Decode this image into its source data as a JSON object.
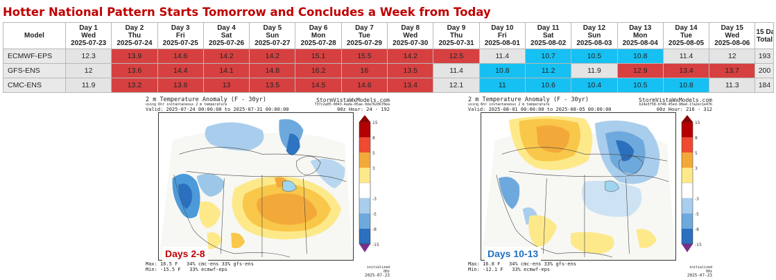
{
  "title": "Hotter National Pattern Starts Tomorrow and Concludes a Week from Today",
  "colors": {
    "hot": "#d64040",
    "cool": "#16c0f2",
    "neutral": "#e4e4e4",
    "title": "#c00000",
    "label1": "#c00000",
    "label2": "#1f6fbf"
  },
  "table": {
    "model_header": "Model",
    "total_header": [
      "15 Day",
      "Total"
    ],
    "days": [
      {
        "label": "Day 1",
        "dow": "Wed",
        "date": "2025-07-23"
      },
      {
        "label": "Day 2",
        "dow": "Thu",
        "date": "2025-07-24"
      },
      {
        "label": "Day 3",
        "dow": "Fri",
        "date": "2025-07-25"
      },
      {
        "label": "Day 4",
        "dow": "Sat",
        "date": "2025-07-26"
      },
      {
        "label": "Day 5",
        "dow": "Sun",
        "date": "2025-07-27"
      },
      {
        "label": "Day 6",
        "dow": "Mon",
        "date": "2025-07-28"
      },
      {
        "label": "Day 7",
        "dow": "Tue",
        "date": "2025-07-29"
      },
      {
        "label": "Day 8",
        "dow": "Wed",
        "date": "2025-07-30"
      },
      {
        "label": "Day 9",
        "dow": "Thu",
        "date": "2025-07-31"
      },
      {
        "label": "Day 10",
        "dow": "Fri",
        "date": "2025-08-01"
      },
      {
        "label": "Day 11",
        "dow": "Sat",
        "date": "2025-08-02"
      },
      {
        "label": "Day 12",
        "dow": "Sun",
        "date": "2025-08-03"
      },
      {
        "label": "Day 13",
        "dow": "Mon",
        "date": "2025-08-04"
      },
      {
        "label": "Day 14",
        "dow": "Tue",
        "date": "2025-08-05"
      },
      {
        "label": "Day 15",
        "dow": "Wed",
        "date": "2025-08-06"
      }
    ],
    "rows": [
      {
        "model": "ECMWF-EPS",
        "values": [
          "12.3",
          "13.9",
          "14.6",
          "14.2",
          "14.2",
          "15.1",
          "15.5",
          "14.2",
          "12.5",
          "11.4",
          "10.7",
          "10.5",
          "10.8",
          "11.4",
          "12"
        ],
        "status": [
          "neutral",
          "hot",
          "hot",
          "hot",
          "hot",
          "hot",
          "hot",
          "hot",
          "hot",
          "neutral",
          "cool",
          "cool",
          "cool",
          "neutral",
          "neutral"
        ],
        "total": "193"
      },
      {
        "model": "GFS-ENS",
        "values": [
          "12",
          "13.6",
          "14.4",
          "14.1",
          "14.8",
          "16.2",
          "16",
          "13.5",
          "11.4",
          "10.8",
          "11.2",
          "11.9",
          "12.9",
          "13.4",
          "13.7"
        ],
        "status": [
          "neutral",
          "hot",
          "hot",
          "hot",
          "hot",
          "hot",
          "hot",
          "hot",
          "neutral",
          "cool",
          "cool",
          "neutral",
          "hot",
          "hot",
          "hot"
        ],
        "total": "200"
      },
      {
        "model": "CMC-ENS",
        "values": [
          "11.9",
          "13.2",
          "13.6",
          "13",
          "13.5",
          "14.5",
          "14.6",
          "13.4",
          "12.1",
          "11",
          "10.6",
          "10.4",
          "10.5",
          "10.8",
          "11.3"
        ],
        "status": [
          "neutral",
          "hot",
          "hot",
          "hot",
          "hot",
          "hot",
          "hot",
          "hot",
          "neutral",
          "cool",
          "cool",
          "cool",
          "cool",
          "cool",
          "neutral"
        ],
        "total": "184"
      }
    ]
  },
  "maps": [
    {
      "title": "2 m Temperature Anomaly (F - 30yr)",
      "sub": "using 6hr instantaneous 2 m temperature",
      "valid": "Valid: 2025-07-24 00:00:00 to 2025-07-31 00:00:00",
      "site": "StormVistaWxModels.com",
      "hash": "737c2a05-0043-4ada-85ae-9da7620678ea",
      "run": "00z",
      "hour": "Hour: 24 - 192",
      "max": "Max: 16.5 F",
      "min": "Min: -15.5 F",
      "weights1": "34% cmc-ens     33% gfs-ens",
      "weights2": "33% ecmwf-eps",
      "initialized_label": "initialized",
      "initialized_run": "00z",
      "initialized_date": "2025-07-23",
      "label": "Days 2-8",
      "colorbar_ticks": [
        "15",
        "8",
        "5",
        "3",
        "-3",
        "-5",
        "-8",
        "-15"
      ]
    },
    {
      "title": "2 m Temperature Anomaly (F - 30yr)",
      "sub": "using 6hr instantaneous 2 m temperature",
      "valid": "Valid: 2025-08-01 00:00:00 to 2025-08-05 00:00:00",
      "site": "StormVistaWxModels.com",
      "hash": "b24e3f58-bf48-45ed-98ad-17a2ec1e47b",
      "run": "00z",
      "hour": "Hour: 216 - 312",
      "max": "Max: 16.8 F",
      "min": "Min: -12.1 F",
      "weights1": "34% cmc-ens     33% gfs-ens",
      "weights2": "33% ecmwf-eps",
      "initialized_label": "initialized",
      "initialized_run": "00z",
      "initialized_date": "2025-07-23",
      "label": "Days 10-13",
      "colorbar_ticks": [
        "15",
        "8",
        "5",
        "3",
        "-3",
        "-5",
        "-8",
        "-15"
      ]
    }
  ]
}
